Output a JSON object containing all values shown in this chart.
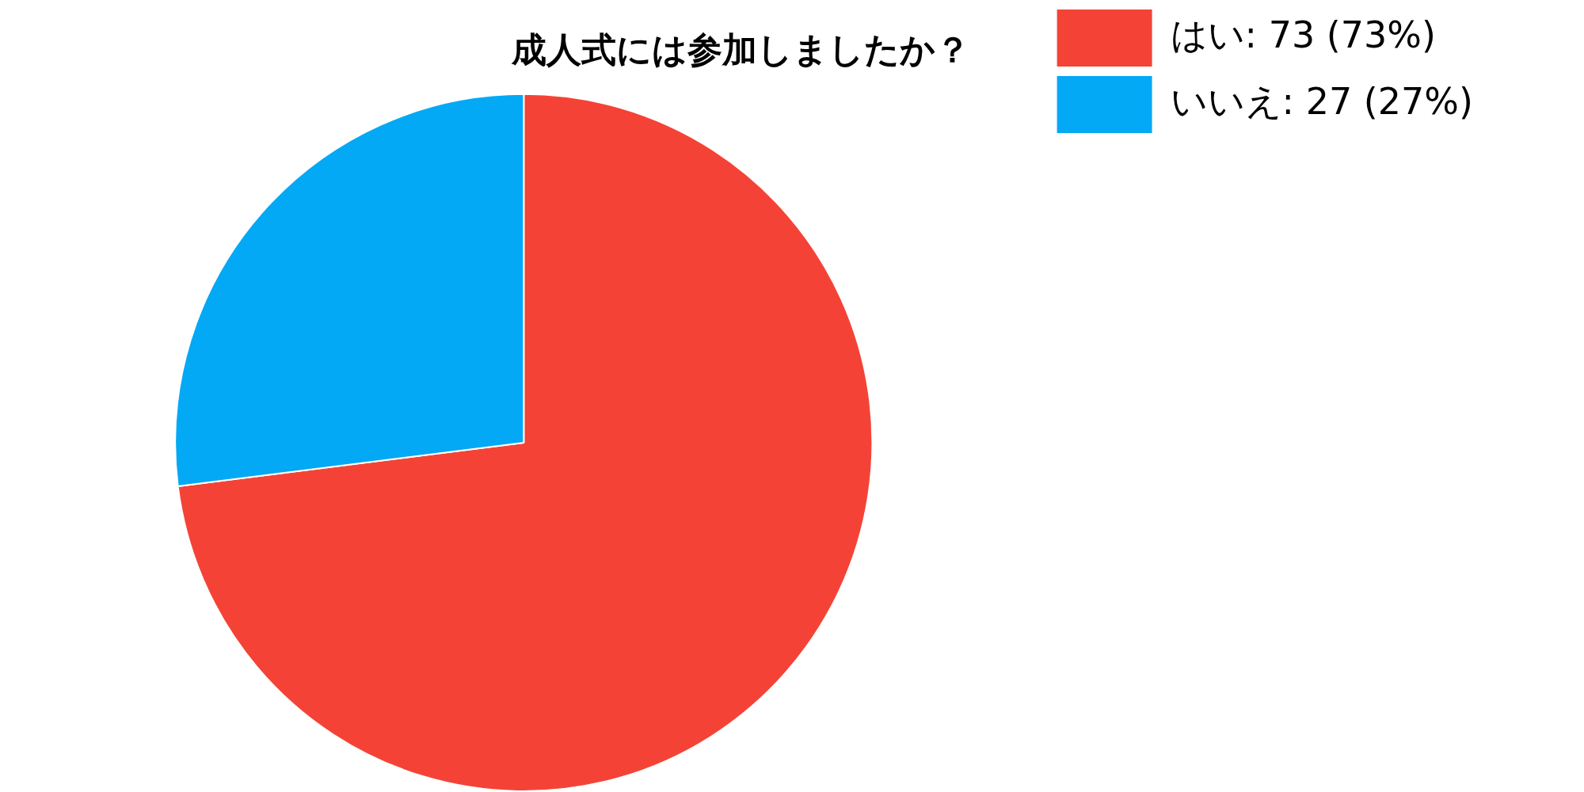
{
  "chart_data": {
    "type": "pie",
    "title": "成人式には参加しましたか？",
    "categories": [
      "はい: 73 (73%)",
      "いいえ: 27 (27%)"
    ],
    "values": [
      73,
      27
    ],
    "colors": [
      "#f44336",
      "#03a9f4"
    ],
    "legend": "top right"
  }
}
